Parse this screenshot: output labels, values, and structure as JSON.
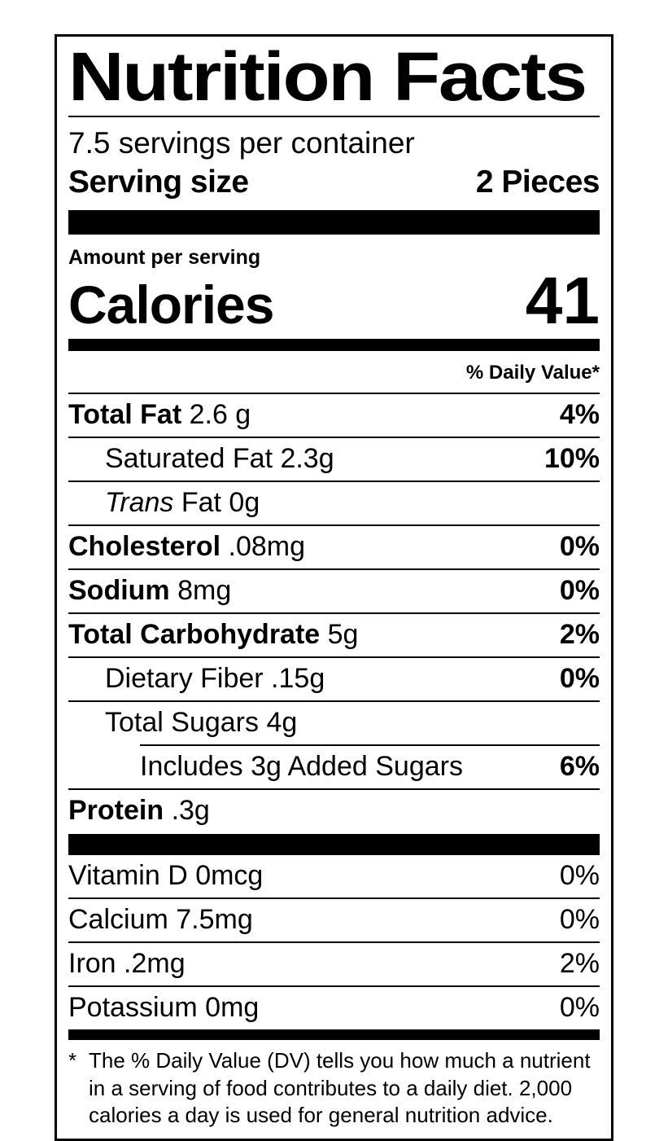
{
  "label": {
    "title": "Nutrition Facts",
    "servings_per_container": "7.5 servings per container",
    "serving_size": {
      "label": "Serving size",
      "value": "2 Pieces"
    },
    "amount_per_serving": "Amount per serving",
    "calories": {
      "label": "Calories",
      "value": "41"
    },
    "daily_value_header": "% Daily Value*",
    "nutrient_rows": [
      {
        "bold": "Total Fat",
        "rest": " 2.6 g",
        "dv": "4%"
      },
      {
        "rest": "Saturated Fat 2.3g",
        "dv": "10%"
      },
      {
        "italic": "Trans",
        "rest": " Fat 0g",
        "dv": ""
      },
      {
        "bold": "Cholesterol",
        "rest": " .08mg",
        "dv": "0%"
      },
      {
        "bold": "Sodium",
        "rest": " 8mg",
        "dv": "0%"
      },
      {
        "bold": "Total Carbohydrate",
        "rest": " 5g",
        "dv": "2%"
      },
      {
        "rest": "Dietary Fiber .15g",
        "dv": "0%"
      },
      {
        "rest": "Total Sugars 4g",
        "dv": ""
      },
      {
        "rest": "Includes 3g Added Sugars",
        "dv": "6%"
      },
      {
        "bold": "Protein",
        "rest": " .3g",
        "dv": ""
      }
    ],
    "vitamin_rows": [
      {
        "label": "Vitamin D 0mcg",
        "dv": "0%"
      },
      {
        "label": "Calcium 7.5mg",
        "dv": "0%"
      },
      {
        "label": "Iron .2mg",
        "dv": "2%"
      },
      {
        "label": "Potassium 0mg",
        "dv": "0%"
      }
    ],
    "footnote_marker": "*",
    "footnote": "The % Daily Value (DV) tells you how much a nutrient in a serving of food contributes to a daily diet. 2,000 calories a day is used for general nutrition advice."
  },
  "colors": {
    "text": "#000000",
    "background": "#ffffff",
    "rule": "#000000"
  }
}
